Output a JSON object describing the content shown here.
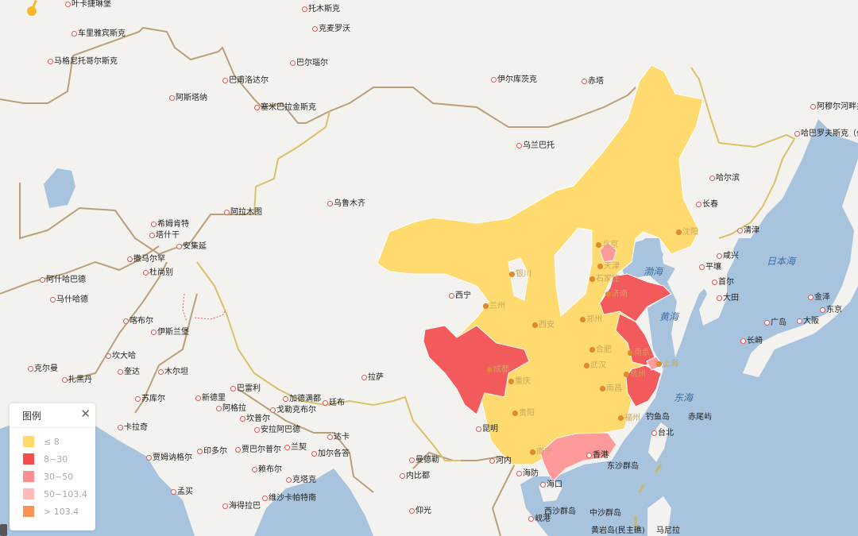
{
  "legend": {
    "title": "图例",
    "close_icon": "close-icon",
    "items": [
      {
        "label": "≤ 8",
        "color": "#ffd966"
      },
      {
        "label": "8~30",
        "color": "#f54c4c"
      },
      {
        "label": "30~50",
        "color": "#fe8e8e"
      },
      {
        "label": "50~103.4",
        "color": "#ffb9b9"
      },
      {
        "label": "> 103.4",
        "color": "#fb9356"
      }
    ]
  },
  "colors": {
    "sea": "#a7c3de",
    "land": "#f3f2ee",
    "border": "#b8a07a",
    "china_border": "#d9c06a"
  },
  "seas": [
    "渤海",
    "黄海",
    "东海",
    "日本海"
  ],
  "cities": [
    "叶卡捷琳堡",
    "托木斯克",
    "车里雅宾斯克",
    "克麦罗沃",
    "马格尼托哥尔斯克",
    "巴尔瑙尔",
    "巴甫洛达尔",
    "伊尔库茨克",
    "赤塔",
    "阿斯塔纳",
    "塞米巴拉金斯克",
    "乌兰巴托",
    "阿穆尔河畔共",
    "哈巴罗夫斯克（伯力）",
    "哈尔滨",
    "长春",
    "乌鲁木齐",
    "阿拉木图",
    "希姆肯特",
    "塔什干",
    "安集延",
    "撒马尔罕",
    "杜尚别",
    "阿什哈巴德",
    "马什哈德",
    "喀布尔",
    "伊斯兰堡",
    "坎大哈",
    "奎达",
    "木尔坦",
    "克尔曼",
    "扎黑丹",
    "苏库尔",
    "新德里",
    "巴雷利",
    "阿格拉",
    "坎普尔",
    "戈勒克布尔",
    "安拉阿巴德",
    "加德满都",
    "廷布",
    "拉萨",
    "卡拉奇",
    "印多尔",
    "贾巴尔普尔",
    "兰契",
    "达卡",
    "加尔各答",
    "贾姆讷格尔",
    "赖布尔",
    "克塔克",
    "曼德勒",
    "内比都",
    "孟买",
    "海得拉巴",
    "维沙卡帕特南",
    "仰光",
    "西宁",
    "昆明",
    "河内",
    "海防",
    "海口",
    "岘港",
    "台北",
    "清津",
    "咸兴",
    "平壤",
    "首尔",
    "大田",
    "金泽",
    "东京",
    "广岛",
    "大阪",
    "长崎",
    "香港"
  ],
  "province_capitals": [
    "沈阳",
    "北京",
    "天津",
    "银川",
    "石家庄",
    "济南",
    "兰州",
    "郑州",
    "西安",
    "合肥",
    "南京",
    "上海",
    "杭州",
    "成都",
    "武汉",
    "重庆",
    "南昌",
    "贵阳",
    "福州",
    "南宁"
  ],
  "islands": [
    "东沙群岛",
    "西沙群岛",
    "中沙群岛",
    "钓鱼岛",
    "赤尾屿",
    "黄岩岛(民主礁)",
    "马尼拉"
  ]
}
